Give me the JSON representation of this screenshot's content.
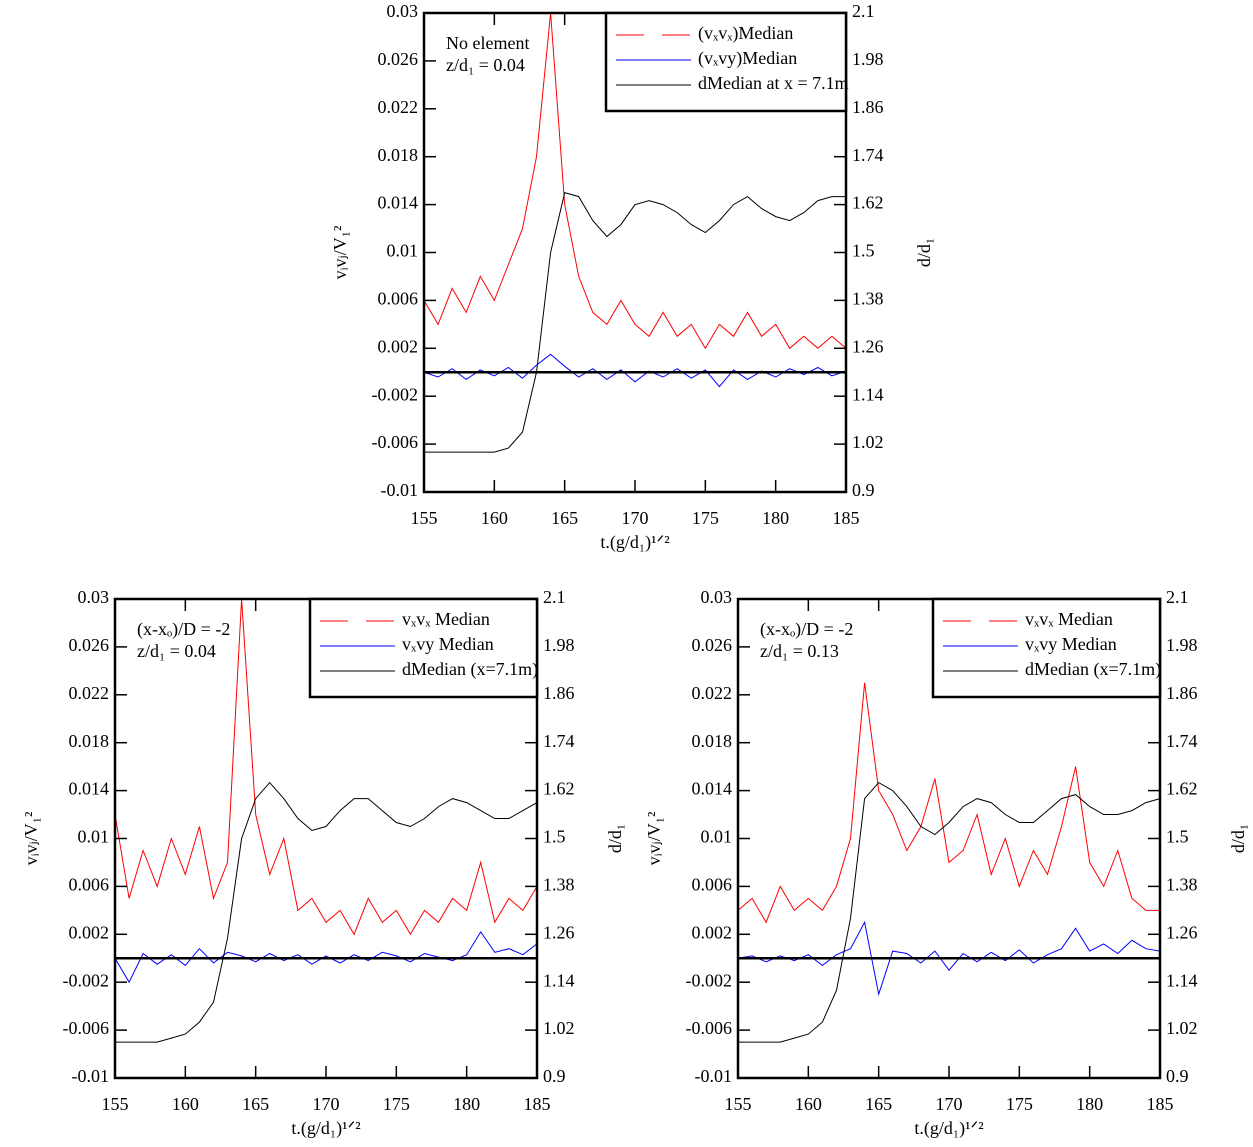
{
  "chart_data": [
    {
      "type": "line",
      "annotations": [
        "No element",
        "z/d₁ = 0.04"
      ],
      "xlabel": "t.(g/d₁)¹ᐟ²",
      "ylabel": "vᵢvⱼ/V₁²",
      "y2label": "d/d₁",
      "x": [
        155,
        156,
        157,
        158,
        159,
        160,
        161,
        162,
        163,
        164,
        165,
        166,
        167,
        168,
        169,
        170,
        171,
        172,
        173,
        174,
        175,
        176,
        177,
        178,
        179,
        180,
        181,
        182,
        183,
        184,
        185
      ],
      "xlim": [
        155,
        185
      ],
      "xticks": [
        155,
        160,
        165,
        170,
        175,
        180,
        185
      ],
      "ylim": [
        -0.01,
        0.03
      ],
      "yticks": [
        -0.01,
        -0.006,
        -0.002,
        0.002,
        0.006,
        0.01,
        0.014,
        0.018,
        0.022,
        0.026,
        0.03
      ],
      "y2lim": [
        0.9,
        2.1
      ],
      "y2ticks": [
        0.9,
        1.02,
        1.14,
        1.26,
        1.38,
        1.5,
        1.62,
        1.74,
        1.86,
        1.98,
        2.1
      ],
      "legend": "upper right",
      "series": [
        {
          "name": "(vₓvₓ)Median",
          "color": "#ff0000",
          "values": [
            0.006,
            0.004,
            0.007,
            0.005,
            0.008,
            0.006,
            0.009,
            0.012,
            0.018,
            0.03,
            0.014,
            0.008,
            0.005,
            0.004,
            0.006,
            0.004,
            0.003,
            0.005,
            0.003,
            0.004,
            0.002,
            0.004,
            0.003,
            0.005,
            0.003,
            0.004,
            0.002,
            0.003,
            0.002,
            0.003,
            0.002
          ]
        },
        {
          "name": "(vₓvy)Median",
          "color": "#0000ff",
          "values": [
            0,
            -0.0004,
            0.0003,
            -0.0006,
            0.0002,
            -0.0003,
            0.0004,
            -0.0005,
            0.0006,
            0.0015,
            0.0005,
            -0.0004,
            0.0003,
            -0.0006,
            0.0002,
            -0.0008,
            0.0001,
            -0.0004,
            0.0003,
            -0.0005,
            0.0002,
            -0.0012,
            0.0002,
            -0.0006,
            0.0001,
            -0.0004,
            0.0003,
            -0.0002,
            0.0004,
            -0.0003,
            0.0001
          ]
        },
        {
          "name": "dMedian at x = 7.1m",
          "color": "#000000",
          "axis": "y2",
          "values": [
            1.0,
            1.0,
            1.0,
            1.0,
            1.0,
            1.0,
            1.01,
            1.05,
            1.2,
            1.5,
            1.65,
            1.64,
            1.58,
            1.54,
            1.57,
            1.62,
            1.63,
            1.62,
            1.6,
            1.57,
            1.55,
            1.58,
            1.62,
            1.64,
            1.61,
            1.59,
            1.58,
            1.6,
            1.63,
            1.64,
            1.64
          ]
        }
      ]
    },
    {
      "type": "line",
      "annotations": [
        "(x-xₒ)/D = -2",
        "z/d₁ = 0.04"
      ],
      "xlabel": "t.(g/d₁)¹ᐟ²",
      "ylabel": "vᵢvⱼ/V₁²",
      "y2label": "d/d₁",
      "x": [
        155,
        156,
        157,
        158,
        159,
        160,
        161,
        162,
        163,
        164,
        165,
        166,
        167,
        168,
        169,
        170,
        171,
        172,
        173,
        174,
        175,
        176,
        177,
        178,
        179,
        180,
        181,
        182,
        183,
        184,
        185
      ],
      "xlim": [
        155,
        185
      ],
      "xticks": [
        155,
        160,
        165,
        170,
        175,
        180,
        185
      ],
      "ylim": [
        -0.01,
        0.03
      ],
      "yticks": [
        -0.01,
        -0.006,
        -0.002,
        0.002,
        0.006,
        0.01,
        0.014,
        0.018,
        0.022,
        0.026,
        0.03
      ],
      "y2lim": [
        0.9,
        2.1
      ],
      "y2ticks": [
        0.9,
        1.02,
        1.14,
        1.26,
        1.38,
        1.5,
        1.62,
        1.74,
        1.86,
        1.98,
        2.1
      ],
      "legend": "upper right",
      "series": [
        {
          "name": "vₓvₓ Median",
          "color": "#ff0000",
          "values": [
            0.012,
            0.005,
            0.009,
            0.006,
            0.01,
            0.007,
            0.011,
            0.005,
            0.008,
            0.03,
            0.012,
            0.007,
            0.01,
            0.004,
            0.005,
            0.003,
            0.004,
            0.002,
            0.005,
            0.003,
            0.004,
            0.002,
            0.004,
            0.003,
            0.005,
            0.004,
            0.008,
            0.003,
            0.005,
            0.004,
            0.006
          ]
        },
        {
          "name": "vₓvy Median",
          "color": "#0000ff",
          "values": [
            0,
            -0.002,
            0.0004,
            -0.0005,
            0.0003,
            -0.0006,
            0.0008,
            -0.0004,
            0.0005,
            0.0002,
            -0.0003,
            0.0004,
            -0.0002,
            0.0003,
            -0.0005,
            0.0002,
            -0.0004,
            0.0003,
            -0.0002,
            0.0005,
            0.0002,
            -0.0003,
            0.0004,
            0.0001,
            -0.0002,
            0.0003,
            0.0022,
            0.0005,
            0.0008,
            0.0003,
            0.0012
          ]
        },
        {
          "name": "dMedian (x=7.1m)",
          "color": "#000000",
          "axis": "y2",
          "values": [
            0.99,
            0.99,
            0.99,
            0.99,
            1.0,
            1.01,
            1.04,
            1.09,
            1.25,
            1.5,
            1.6,
            1.64,
            1.6,
            1.55,
            1.52,
            1.53,
            1.57,
            1.6,
            1.6,
            1.57,
            1.54,
            1.53,
            1.55,
            1.58,
            1.6,
            1.59,
            1.57,
            1.55,
            1.55,
            1.57,
            1.59
          ]
        }
      ]
    },
    {
      "type": "line",
      "annotations": [
        "(x-xₒ)/D = -2",
        "z/d₁ = 0.13"
      ],
      "xlabel": "t.(g/d₁)¹ᐟ²",
      "ylabel": "vᵢvⱼ/V₁²",
      "y2label": "d/d₁",
      "x": [
        155,
        156,
        157,
        158,
        159,
        160,
        161,
        162,
        163,
        164,
        165,
        166,
        167,
        168,
        169,
        170,
        171,
        172,
        173,
        174,
        175,
        176,
        177,
        178,
        179,
        180,
        181,
        182,
        183,
        184,
        185
      ],
      "xlim": [
        155,
        185
      ],
      "xticks": [
        155,
        160,
        165,
        170,
        175,
        180,
        185
      ],
      "ylim": [
        -0.01,
        0.03
      ],
      "yticks": [
        -0.01,
        -0.006,
        -0.002,
        0.002,
        0.006,
        0.01,
        0.014,
        0.018,
        0.022,
        0.026,
        0.03
      ],
      "y2lim": [
        0.9,
        2.1
      ],
      "y2ticks": [
        0.9,
        1.02,
        1.14,
        1.26,
        1.38,
        1.5,
        1.62,
        1.74,
        1.86,
        1.98,
        2.1
      ],
      "legend": "upper right",
      "series": [
        {
          "name": "vₓvₓ Median",
          "color": "#ff0000",
          "values": [
            0.004,
            0.005,
            0.003,
            0.006,
            0.004,
            0.005,
            0.004,
            0.006,
            0.01,
            0.023,
            0.014,
            0.012,
            0.009,
            0.011,
            0.015,
            0.008,
            0.009,
            0.012,
            0.007,
            0.01,
            0.006,
            0.009,
            0.007,
            0.011,
            0.016,
            0.008,
            0.006,
            0.009,
            0.005,
            0.004,
            0.004
          ]
        },
        {
          "name": "vₓvy Median",
          "color": "#0000ff",
          "values": [
            0,
            0.0002,
            -0.0003,
            0.0002,
            -0.0002,
            0.0003,
            -0.0006,
            0.0003,
            0.0008,
            0.003,
            -0.003,
            0.0006,
            0.0004,
            -0.0004,
            0.0006,
            -0.001,
            0.0004,
            -0.0003,
            0.0005,
            -0.0002,
            0.0007,
            -0.0004,
            0.0003,
            0.0008,
            0.0025,
            0.0006,
            0.0012,
            0.0004,
            0.0015,
            0.0008,
            0.0006
          ]
        },
        {
          "name": "dMedian (x=7.1m)",
          "color": "#000000",
          "axis": "y2",
          "values": [
            0.99,
            0.99,
            0.99,
            0.99,
            1.0,
            1.01,
            1.04,
            1.12,
            1.3,
            1.6,
            1.64,
            1.62,
            1.58,
            1.53,
            1.51,
            1.54,
            1.58,
            1.6,
            1.59,
            1.56,
            1.54,
            1.54,
            1.57,
            1.6,
            1.61,
            1.58,
            1.56,
            1.56,
            1.57,
            1.59,
            1.6
          ]
        }
      ]
    }
  ]
}
